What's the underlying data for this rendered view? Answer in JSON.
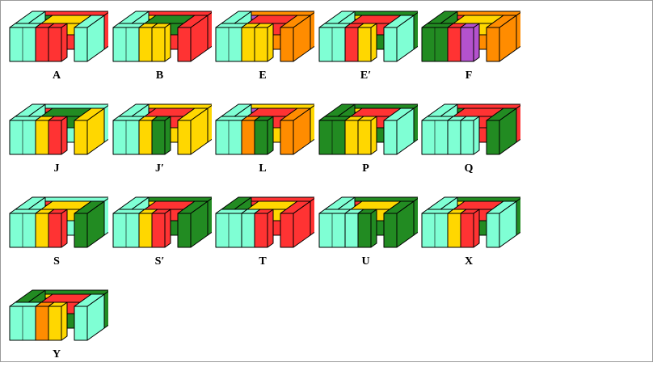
{
  "palette": {
    "cyan": "#7fffd4",
    "red": "#ff3333",
    "yellow": "#ffd700",
    "green": "#228b22",
    "orange": "#ff8c00",
    "purple": "#b452cd"
  },
  "puzzles": [
    {
      "label": "A",
      "colors": [
        "red",
        "cyan",
        "cyan",
        "cyan",
        "yellow",
        "red",
        "red",
        "green"
      ]
    },
    {
      "label": "B",
      "colors": [
        "red",
        "red",
        "cyan",
        "cyan",
        "green",
        "yellow",
        "yellow",
        "yellow"
      ]
    },
    {
      "label": "E",
      "colors": [
        "orange",
        "orange",
        "cyan",
        "cyan",
        "red",
        "yellow",
        "yellow",
        "purple"
      ]
    },
    {
      "label": "E′",
      "colors": [
        "green",
        "cyan",
        "cyan",
        "cyan",
        "red",
        "red",
        "yellow",
        "yellow"
      ]
    },
    {
      "label": "F",
      "colors": [
        "orange",
        "orange",
        "green",
        "green",
        "yellow",
        "red",
        "purple",
        "red"
      ]
    },
    {
      "label": "J",
      "colors": [
        "cyan",
        "yellow",
        "cyan",
        "cyan",
        "green",
        "yellow",
        "red",
        "red"
      ]
    },
    {
      "label": "J′",
      "colors": [
        "yellow",
        "yellow",
        "cyan",
        "cyan",
        "red",
        "yellow",
        "green",
        "red"
      ]
    },
    {
      "label": "L",
      "colors": [
        "yellow",
        "orange",
        "cyan",
        "cyan",
        "red",
        "orange",
        "green",
        "purple"
      ]
    },
    {
      "label": "P",
      "colors": [
        "green",
        "cyan",
        "green",
        "green",
        "red",
        "yellow",
        "yellow",
        "yellow"
      ]
    },
    {
      "label": "Q",
      "colors": [
        "red",
        "green",
        "cyan",
        "cyan",
        "red",
        "cyan",
        "cyan",
        "green"
      ]
    },
    {
      "label": "S",
      "colors": [
        "cyan",
        "green",
        "cyan",
        "cyan",
        "yellow",
        "yellow",
        "red",
        "red"
      ]
    },
    {
      "label": "S′",
      "colors": [
        "green",
        "green",
        "cyan",
        "cyan",
        "red",
        "yellow",
        "red",
        "yellow"
      ]
    },
    {
      "label": "T",
      "colors": [
        "red",
        "red",
        "green",
        "cyan",
        "yellow",
        "cyan",
        "red",
        "red"
      ]
    },
    {
      "label": "U",
      "colors": [
        "green",
        "green",
        "cyan",
        "cyan",
        "yellow",
        "cyan",
        "green",
        "red"
      ]
    },
    {
      "label": "X",
      "colors": [
        "green",
        "cyan",
        "cyan",
        "cyan",
        "red",
        "yellow",
        "red",
        "yellow"
      ]
    },
    {
      "label": "Y",
      "colors": [
        "green",
        "cyan",
        "green",
        "cyan",
        "red",
        "orange",
        "yellow",
        "yellow"
      ]
    }
  ]
}
